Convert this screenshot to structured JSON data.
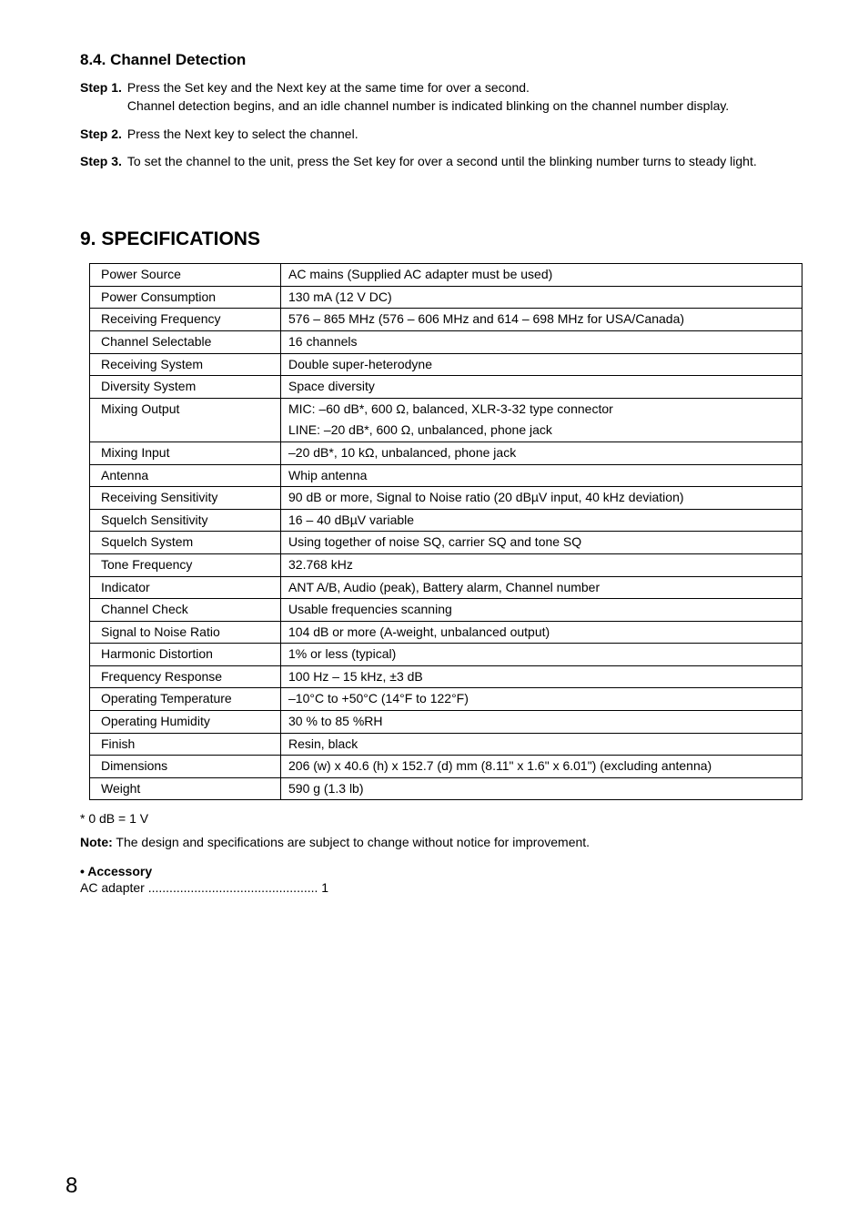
{
  "section84": {
    "heading": "8.4. Channel Detection",
    "steps": [
      {
        "label": "Step 1.",
        "text": "Press the Set key and the Next key at the same time for over a second.\nChannel detection begins, and an idle channel number is indicated blinking on the channel number display."
      },
      {
        "label": "Step 2.",
        "text": "Press the Next key to select the channel."
      },
      {
        "label": "Step 3.",
        "text": "To set the channel to the unit, press the Set key for over a second until the blinking number turns to steady light."
      }
    ]
  },
  "section9": {
    "heading": "9. SPECIFICATIONS",
    "rows": [
      {
        "label": "Power Source",
        "value": "AC mains (Supplied AC adapter must be used)"
      },
      {
        "label": "Power Consumption",
        "value": "130 mA (12 V DC)"
      },
      {
        "label": "Receiving Frequency",
        "value": "576 – 865 MHz (576 – 606 MHz and 614 – 698 MHz for USA/Canada)"
      },
      {
        "label": "Channel Selectable",
        "value": "16 channels"
      },
      {
        "label": "Receiving System",
        "value": "Double super-heterodyne"
      },
      {
        "label": "Diversity System",
        "value": "Space diversity"
      },
      {
        "label": "Mixing Output",
        "value_line1": "MIC:   –60 dB*, 600 Ω, balanced, XLR-3-32 type connector",
        "value_line2": "LINE:  –20 dB*, 600 Ω, unbalanced, phone jack"
      },
      {
        "label": "Mixing Input",
        "value": "–20 dB*, 10 kΩ, unbalanced, phone jack"
      },
      {
        "label": "Antenna",
        "value": "Whip antenna"
      },
      {
        "label": "Receiving Sensitivity",
        "value": "90 dB or more, Signal to Noise ratio (20 dBµV input, 40 kHz deviation)"
      },
      {
        "label": "Squelch Sensitivity",
        "value": "16 – 40 dBµV variable"
      },
      {
        "label": "Squelch System",
        "value": "Using together of noise SQ, carrier SQ and tone SQ"
      },
      {
        "label": "Tone Frequency",
        "value": "32.768 kHz"
      },
      {
        "label": "Indicator",
        "value": "ANT A/B, Audio (peak), Battery alarm, Channel number"
      },
      {
        "label": "Channel Check",
        "value": "Usable frequencies scanning"
      },
      {
        "label": "Signal to Noise Ratio",
        "value": "104 dB or more (A-weight, unbalanced output)"
      },
      {
        "label": "Harmonic Distortion",
        "value": "1% or less (typical)"
      },
      {
        "label": "Frequency Response",
        "value": "100 Hz – 15 kHz, ±3 dB"
      },
      {
        "label": "Operating Temperature",
        "value": "–10°C to +50°C (14°F to 122°F)"
      },
      {
        "label": "Operating Humidity",
        "value": "30 % to 85 %RH"
      },
      {
        "label": "Finish",
        "value": "Resin, black"
      },
      {
        "label": "Dimensions",
        "value": "206 (w) x 40.6 (h) x 152.7 (d) mm (8.11\" x 1.6\" x 6.01\") (excluding antenna)"
      },
      {
        "label": "Weight",
        "value": "590 g (1.3 lb)"
      }
    ],
    "footnote": "* 0 dB = 1 V",
    "note_label": "Note:",
    "note_text": " The design and specifications are subject to change without notice for improvement.",
    "accessory_heading": "• Accessory",
    "accessory_line": "AC adapter ................................................ 1"
  },
  "page_number": "8"
}
